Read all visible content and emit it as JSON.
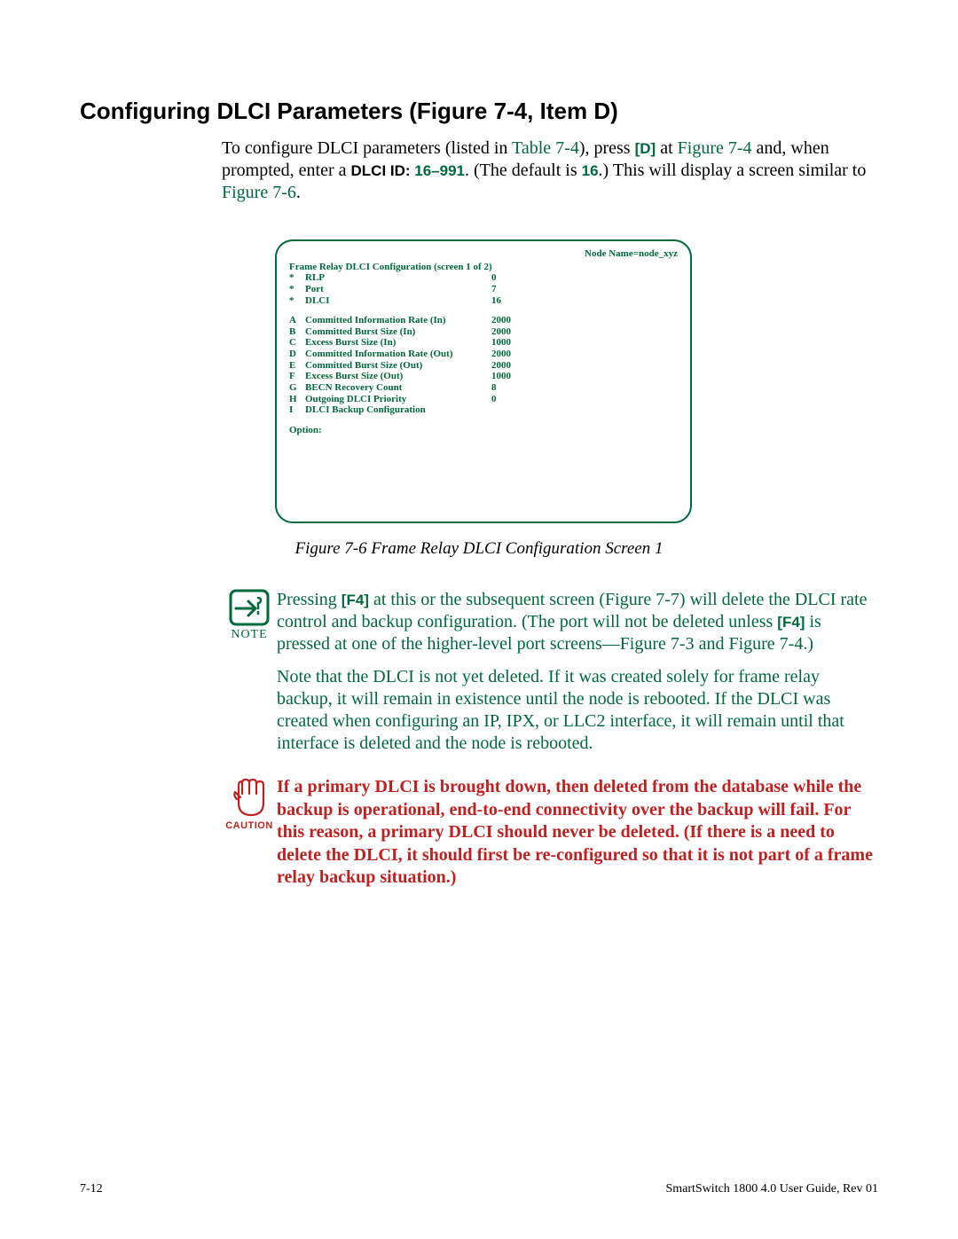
{
  "heading": "Configuring DLCI Parameters (Figure 7-4, Item D)",
  "intro": {
    "t1": "To configure DLCI parameters (listed in ",
    "link1": "Table 7-4",
    "t2": "), press ",
    "key1": "[D]",
    "t3": " at ",
    "link2": "Figure 7-4 ",
    "t4": "and, when prompted, enter a ",
    "dlci_prompt": "DLCI ID:",
    "range": " 16–991",
    "t5": ". (The default is ",
    "default": "16",
    "t6": ".) This will display a screen similar to ",
    "link3": "Figure 7-6",
    "t7": "."
  },
  "screen": {
    "node_name": "Node Name=node_xyz",
    "title": "Frame Relay DLCI Configuration (screen 1 of 2)",
    "rows": [
      {
        "c1": "*",
        "c2": "RLP",
        "c3": "0"
      },
      {
        "c1": "*",
        "c2": "Port",
        "c3": "7"
      },
      {
        "c1": "*",
        "c2": "DLCI",
        "c3": "16"
      }
    ],
    "rows2": [
      {
        "c1": "A",
        "c2": "Committed Information Rate (In)",
        "c3": "2000"
      },
      {
        "c1": "B",
        "c2": "Committed Burst Size (In)",
        "c3": "2000"
      },
      {
        "c1": "C",
        "c2": "Excess Burst Size (In)",
        "c3": "1000"
      },
      {
        "c1": "D",
        "c2": "Committed Information Rate (Out)",
        "c3": "2000"
      },
      {
        "c1": "E",
        "c2": "Committed Burst Size (Out)",
        "c3": "2000"
      },
      {
        "c1": "F",
        "c2": "Excess Burst Size (Out)",
        "c3": "1000"
      },
      {
        "c1": "G",
        "c2": "BECN Recovery Count",
        "c3": "8"
      },
      {
        "c1": "H",
        "c2": "Outgoing DLCI Priority",
        "c3": "0"
      },
      {
        "c1": "I",
        "c2": "DLCI Backup Configuration",
        "c3": ""
      }
    ],
    "option": "Option:"
  },
  "fig_caption": "Figure 7-6    Frame Relay DLCI Configuration Screen 1",
  "note": {
    "label": "NOTE",
    "p1a": "Pressing ",
    "key": "[F4]",
    "p1b": " at this or the subsequent screen (",
    "link1": "Figure 7-7",
    "p1c": ") will delete the DLCI rate control and backup configuration. (The port will not be deleted unless ",
    "key2": "[F4]",
    "p1d": " is pressed at one of the higher-level port screens—",
    "link2": "Figure 7-3",
    "p1e": " and ",
    "link3": "Figure 7-4",
    "p1f": ".)",
    "p2": "Note that the DLCI is not yet deleted. If it was created solely for frame relay backup, it will remain in existence until the node is rebooted. If the DLCI was created when configuring an IP, IPX, or LLC2 interface, it will remain until that interface is deleted and the node is rebooted."
  },
  "caution": {
    "label": "CAUTION",
    "text": "If a primary DLCI is brought down, then deleted from the database while the backup is operational, end-to-end connectivity over the backup will fail. For this reason, a primary DLCI should never be deleted. (If there is a need to delete the DLCI, it should first be re-configured so that it is not part of a frame relay backup situation.)"
  },
  "footer": {
    "left": "7-12",
    "right": "SmartSwitch 1800 4.0 User Guide, Rev 01"
  },
  "colors": {
    "green": "#006a3a",
    "red": "#c02020"
  }
}
